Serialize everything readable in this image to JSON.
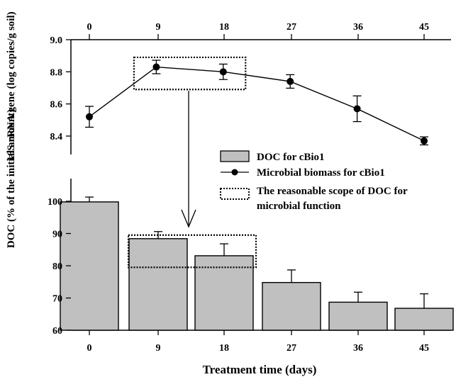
{
  "chart_data": [
    {
      "type": "line",
      "panel": "top",
      "x_ticks": [
        "0",
        "9",
        "18",
        "27",
        "36",
        "45"
      ],
      "x_axis_position": "top",
      "ylabel": "16S rRNA gene (log copies/g soil)",
      "ylim": [
        8.3,
        9.0
      ],
      "y_ticks": [
        "8.4",
        "8.6",
        "8.8",
        "9.0"
      ],
      "series": [
        {
          "name": "Microbial biomass for cBio1",
          "color": "#000000",
          "marker": "filled-circle",
          "x": [
            0,
            9,
            18,
            27,
            36,
            45
          ],
          "values": [
            8.52,
            8.83,
            8.8,
            8.74,
            8.57,
            8.37
          ],
          "errors": [
            0.065,
            0.042,
            0.048,
            0.042,
            0.08,
            0.025
          ]
        }
      ],
      "annotation": {
        "type": "dotted-box",
        "x_range": [
          6,
          21
        ],
        "y_range": [
          8.69,
          8.89
        ]
      }
    },
    {
      "type": "bar",
      "panel": "bottom",
      "categories": [
        "0",
        "9",
        "18",
        "27",
        "36",
        "45"
      ],
      "xlabel": "Treatment time (days)",
      "ylabel": "DOC (% of the initial amount)",
      "ylim": [
        60,
        106
      ],
      "y_ticks": [
        "60",
        "70",
        "80",
        "90",
        "100"
      ],
      "series": [
        {
          "name": "DOC for cBio1",
          "color": "#c0c0c0",
          "values": [
            99.8,
            88.4,
            83.1,
            74.8,
            68.7,
            66.8
          ],
          "errors": [
            1.5,
            2.2,
            3.7,
            3.9,
            3.1,
            4.5
          ]
        }
      ],
      "annotation": {
        "type": "dotted-box",
        "label": "The reasonable scope of DOC for microbial function",
        "x_range": [
          "9",
          "18"
        ],
        "y_range": [
          79.5,
          89.5
        ]
      }
    }
  ],
  "legend": {
    "position": "middle-right",
    "items": [
      {
        "label": "DOC for cBio1",
        "symbol": "bar",
        "color": "#c0c0c0"
      },
      {
        "label": "Microbial biomass for cBio1",
        "symbol": "line-circle",
        "color": "#000000"
      },
      {
        "label_line1": "The reasonable scope of DOC for",
        "label_line2": "microbial function",
        "symbol": "dotted-box"
      }
    ]
  }
}
